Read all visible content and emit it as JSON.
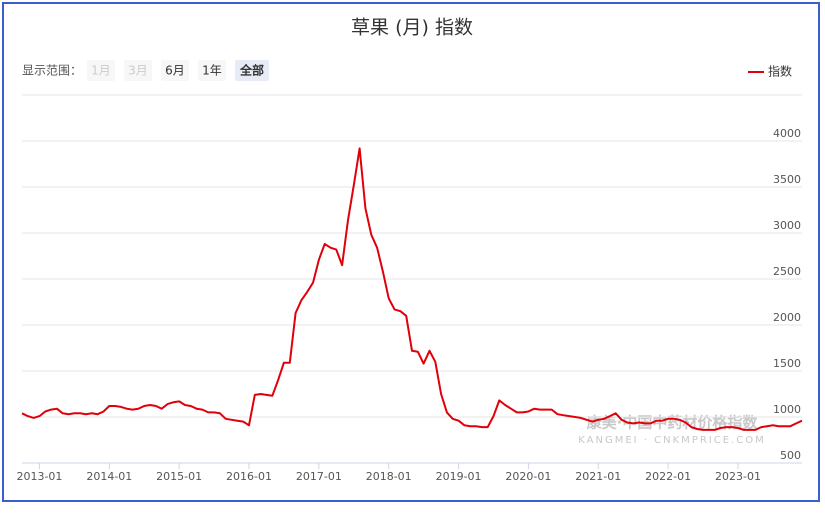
{
  "chart_data": {
    "type": "line",
    "title": "草果 (月) 指数",
    "range_label": "显示范围：",
    "range_buttons": [
      "1月",
      "3月",
      "6月",
      "1年",
      "全部"
    ],
    "watermark": [
      "康美·中国中药材价格指数",
      "KANGMEI · CNKMPRICE.COM"
    ],
    "legend_position": "top-right",
    "grid": true,
    "xlim": [
      "2012-10",
      "2023-12"
    ],
    "xticks": [
      "2013-01",
      "2014-01",
      "2015-01",
      "2016-01",
      "2017-01",
      "2018-01",
      "2019-01",
      "2020-01",
      "2021-01",
      "2022-01",
      "2023-01"
    ],
    "ylim": [
      500,
      4500
    ],
    "yticks": [
      500,
      1000,
      1500,
      2000,
      2500,
      3000,
      3500,
      4000
    ],
    "x": [
      "2012-10",
      "2012-11",
      "2012-12",
      "2013-01",
      "2013-02",
      "2013-03",
      "2013-04",
      "2013-05",
      "2013-06",
      "2013-07",
      "2013-08",
      "2013-09",
      "2013-10",
      "2013-11",
      "2013-12",
      "2014-01",
      "2014-02",
      "2014-03",
      "2014-04",
      "2014-05",
      "2014-06",
      "2014-07",
      "2014-08",
      "2014-09",
      "2014-10",
      "2014-11",
      "2014-12",
      "2015-01",
      "2015-02",
      "2015-03",
      "2015-04",
      "2015-05",
      "2015-06",
      "2015-07",
      "2015-08",
      "2015-09",
      "2015-10",
      "2015-11",
      "2015-12",
      "2016-01",
      "2016-02",
      "2016-03",
      "2016-04",
      "2016-05",
      "2016-06",
      "2016-07",
      "2016-08",
      "2016-09",
      "2016-10",
      "2016-11",
      "2016-12",
      "2017-01",
      "2017-02",
      "2017-03",
      "2017-04",
      "2017-05",
      "2017-06",
      "2017-07",
      "2017-08",
      "2017-09",
      "2017-10",
      "2017-11",
      "2017-12",
      "2018-01",
      "2018-02",
      "2018-03",
      "2018-04",
      "2018-05",
      "2018-06",
      "2018-07",
      "2018-08",
      "2018-09",
      "2018-10",
      "2018-11",
      "2018-12",
      "2019-01",
      "2019-02",
      "2019-03",
      "2019-04",
      "2019-05",
      "2019-06",
      "2019-07",
      "2019-08",
      "2019-09",
      "2019-10",
      "2019-11",
      "2019-12",
      "2020-01",
      "2020-02",
      "2020-03",
      "2020-04",
      "2020-05",
      "2020-06",
      "2020-07",
      "2020-08",
      "2020-09",
      "2020-10",
      "2020-11",
      "2020-12",
      "2021-01",
      "2021-02",
      "2021-03",
      "2021-04",
      "2021-05",
      "2021-06",
      "2021-07",
      "2021-08",
      "2021-09",
      "2021-10",
      "2021-11",
      "2021-12",
      "2022-01",
      "2022-02",
      "2022-03",
      "2022-04",
      "2022-05",
      "2022-06",
      "2022-07",
      "2022-08",
      "2022-09",
      "2022-10",
      "2022-11",
      "2022-12",
      "2023-01",
      "2023-02",
      "2023-03",
      "2023-04",
      "2023-05",
      "2023-06",
      "2023-07",
      "2023-08",
      "2023-09",
      "2023-10",
      "2023-11",
      "2023-12"
    ],
    "series": [
      {
        "name": "指数",
        "color": "#e0000a",
        "values": [
          1040,
          1010,
          990,
          1010,
          1060,
          1080,
          1090,
          1040,
          1030,
          1040,
          1040,
          1030,
          1040,
          1030,
          1060,
          1120,
          1120,
          1110,
          1090,
          1080,
          1090,
          1120,
          1130,
          1120,
          1090,
          1140,
          1160,
          1170,
          1130,
          1120,
          1090,
          1080,
          1050,
          1050,
          1040,
          980,
          970,
          960,
          950,
          910,
          1240,
          1250,
          1240,
          1230,
          1400,
          1590,
          1590,
          2130,
          2270,
          2360,
          2460,
          2710,
          2880,
          2840,
          2820,
          2650,
          3140,
          3520,
          3920,
          3270,
          2980,
          2840,
          2580,
          2290,
          2170,
          2150,
          2100,
          1720,
          1710,
          1580,
          1720,
          1600,
          1250,
          1050,
          980,
          960,
          910,
          900,
          900,
          890,
          890,
          1010,
          1180,
          1130,
          1090,
          1050,
          1050,
          1060,
          1090,
          1080,
          1080,
          1080,
          1030,
          1020,
          1010,
          1000,
          990,
          970,
          950,
          970,
          980,
          1010,
          1040,
          970,
          940,
          930,
          940,
          930,
          930,
          960,
          960,
          980,
          980,
          970,
          940,
          890,
          870,
          860,
          860,
          860,
          880,
          890,
          890,
          880,
          860,
          860,
          860,
          890,
          900,
          910,
          900,
          900,
          900,
          930,
          960
        ]
      }
    ]
  }
}
